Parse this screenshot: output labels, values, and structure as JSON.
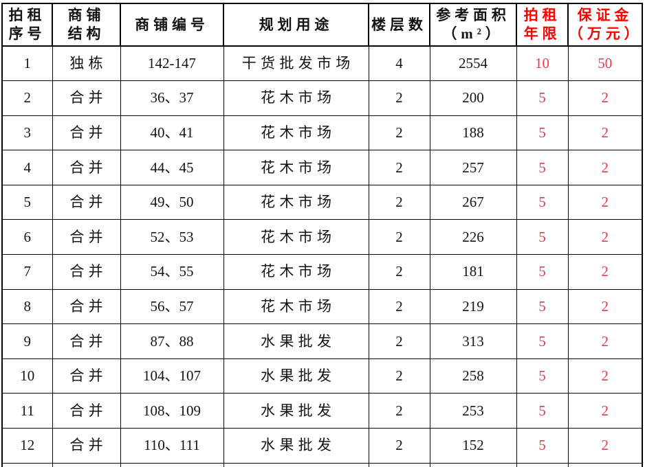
{
  "colors": {
    "background": "#ffffff",
    "border": "#000000",
    "text": "#141414",
    "header_red": "#ff0000",
    "value_red": "#e63b4a"
  },
  "table": {
    "columns": [
      {
        "id": "seq",
        "lines": [
          "拍租",
          "序号"
        ],
        "red": false
      },
      {
        "id": "structure",
        "lines": [
          "商铺",
          "结构"
        ],
        "red": false
      },
      {
        "id": "shop-number",
        "lines": [
          "商铺编号"
        ],
        "red": false
      },
      {
        "id": "planned-use",
        "lines": [
          "规划用途"
        ],
        "red": false
      },
      {
        "id": "floors",
        "lines": [
          "楼层数"
        ],
        "red": false
      },
      {
        "id": "area",
        "lines": [
          "参考面积",
          "（m²）"
        ],
        "red": false
      },
      {
        "id": "term",
        "lines": [
          "拍租",
          "年限"
        ],
        "red": true
      },
      {
        "id": "deposit",
        "lines": [
          "保证金",
          "（万元）"
        ],
        "red": true
      }
    ],
    "rows": [
      [
        "1",
        "独栋",
        "142-147",
        "干货批发市场",
        "4",
        "2554",
        "10",
        "50"
      ],
      [
        "2",
        "合并",
        "36、37",
        "花木市场",
        "2",
        "200",
        "5",
        "2"
      ],
      [
        "3",
        "合并",
        "40、41",
        "花木市场",
        "2",
        "188",
        "5",
        "2"
      ],
      [
        "4",
        "合并",
        "44、45",
        "花木市场",
        "2",
        "257",
        "5",
        "2"
      ],
      [
        "5",
        "合并",
        "49、50",
        "花木市场",
        "2",
        "267",
        "5",
        "2"
      ],
      [
        "6",
        "合并",
        "52、53",
        "花木市场",
        "2",
        "226",
        "5",
        "2"
      ],
      [
        "7",
        "合并",
        "54、55",
        "花木市场",
        "2",
        "181",
        "5",
        "2"
      ],
      [
        "8",
        "合并",
        "56、57",
        "花木市场",
        "2",
        "219",
        "5",
        "2"
      ],
      [
        "9",
        "合并",
        "87、88",
        "水果批发",
        "2",
        "313",
        "5",
        "2"
      ],
      [
        "10",
        "合并",
        "104、107",
        "水果批发",
        "2",
        "258",
        "5",
        "2"
      ],
      [
        "11",
        "合并",
        "108、109",
        "水果批发",
        "2",
        "253",
        "5",
        "2"
      ],
      [
        "12",
        "合并",
        "110、111",
        "水果批发",
        "2",
        "152",
        "5",
        "2"
      ]
    ],
    "red_value_columns": [
      6,
      7
    ],
    "cjk_columns": [
      1,
      3
    ]
  }
}
